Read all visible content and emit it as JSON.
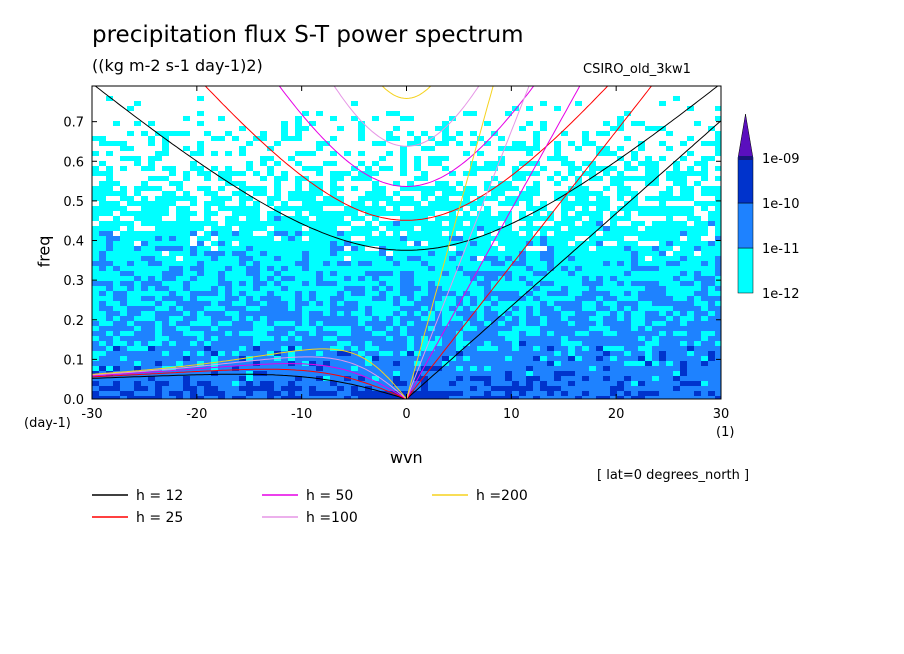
{
  "title": "precipitation flux S-T power spectrum",
  "subtitle": "((kg m-2 s-1 day-1)2)",
  "model_label": "CSIRO_old_3kw1",
  "lat_note": "[ lat=0 degrees_north ]",
  "chart_data": {
    "type": "heatmap",
    "xlabel": "wvn",
    "ylabel": "freq",
    "x_unit": "(1)",
    "y_unit": "(day-1)",
    "xlim": [
      -30,
      30
    ],
    "ylim": [
      0,
      0.79
    ],
    "x_ticks": [
      -30,
      -20,
      -10,
      0,
      10,
      20,
      30
    ],
    "x_tick_labels": [
      "-30",
      "-20",
      "-10",
      "0",
      "10",
      "20",
      "30"
    ],
    "y_ticks": [
      0.0,
      0.1,
      0.2,
      0.3,
      0.4,
      0.5,
      0.6,
      0.7
    ],
    "y_tick_labels": [
      "0.0",
      "0.1",
      "0.2",
      "0.3",
      "0.4",
      "0.5",
      "0.6",
      "0.7"
    ],
    "colorbar": {
      "levels": [
        "1e-12",
        "1e-11",
        "1e-10",
        "1e-09"
      ],
      "colors": [
        "#00ffff",
        "#1e82ff",
        "#0033cc",
        "#16167a",
        "#5a0fbe"
      ]
    },
    "field_colors": [
      "#ffffff",
      "#00ffff",
      "#1e82ff",
      "#0033cc"
    ],
    "dispersion_curves": [
      {
        "label": "h = 12",
        "h": 12,
        "color": "#000000"
      },
      {
        "label": "h = 25",
        "h": 25,
        "color": "#ff0000"
      },
      {
        "label": "h = 50",
        "h": 50,
        "color": "#e600e6"
      },
      {
        "label": "h =100",
        "h": 100,
        "color": "#e696e6"
      },
      {
        "label": "h =200",
        "h": 200,
        "color": "#f5d21e"
      }
    ]
  }
}
